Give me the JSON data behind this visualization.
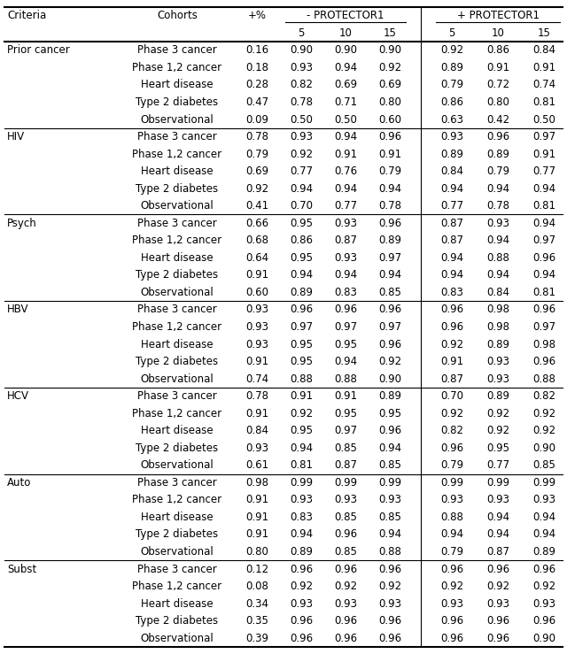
{
  "sections": [
    {
      "criteria": "Prior cancer",
      "rows": [
        [
          "Phase 3 cancer",
          "0.16",
          "0.90",
          "0.90",
          "0.90",
          "0.92",
          "0.86",
          "0.84"
        ],
        [
          "Phase 1,2 cancer",
          "0.18",
          "0.93",
          "0.94",
          "0.92",
          "0.89",
          "0.91",
          "0.91"
        ],
        [
          "Heart disease",
          "0.28",
          "0.82",
          "0.69",
          "0.69",
          "0.79",
          "0.72",
          "0.74"
        ],
        [
          "Type 2 diabetes",
          "0.47",
          "0.78",
          "0.71",
          "0.80",
          "0.86",
          "0.80",
          "0.81"
        ],
        [
          "Observational",
          "0.09",
          "0.50",
          "0.50",
          "0.60",
          "0.63",
          "0.42",
          "0.50"
        ]
      ]
    },
    {
      "criteria": "HIV",
      "rows": [
        [
          "Phase 3 cancer",
          "0.78",
          "0.93",
          "0.94",
          "0.96",
          "0.93",
          "0.96",
          "0.97"
        ],
        [
          "Phase 1,2 cancer",
          "0.79",
          "0.92",
          "0.91",
          "0.91",
          "0.89",
          "0.89",
          "0.91"
        ],
        [
          "Heart disease",
          "0.69",
          "0.77",
          "0.76",
          "0.79",
          "0.84",
          "0.79",
          "0.77"
        ],
        [
          "Type 2 diabetes",
          "0.92",
          "0.94",
          "0.94",
          "0.94",
          "0.94",
          "0.94",
          "0.94"
        ],
        [
          "Observational",
          "0.41",
          "0.70",
          "0.77",
          "0.78",
          "0.77",
          "0.78",
          "0.81"
        ]
      ]
    },
    {
      "criteria": "Psych",
      "rows": [
        [
          "Phase 3 cancer",
          "0.66",
          "0.95",
          "0.93",
          "0.96",
          "0.87",
          "0.93",
          "0.94"
        ],
        [
          "Phase 1,2 cancer",
          "0.68",
          "0.86",
          "0.87",
          "0.89",
          "0.87",
          "0.94",
          "0.97"
        ],
        [
          "Heart disease",
          "0.64",
          "0.95",
          "0.93",
          "0.97",
          "0.94",
          "0.88",
          "0.96"
        ],
        [
          "Type 2 diabetes",
          "0.91",
          "0.94",
          "0.94",
          "0.94",
          "0.94",
          "0.94",
          "0.94"
        ],
        [
          "Observational",
          "0.60",
          "0.89",
          "0.83",
          "0.85",
          "0.83",
          "0.84",
          "0.81"
        ]
      ]
    },
    {
      "criteria": "HBV",
      "rows": [
        [
          "Phase 3 cancer",
          "0.93",
          "0.96",
          "0.96",
          "0.96",
          "0.96",
          "0.98",
          "0.96"
        ],
        [
          "Phase 1,2 cancer",
          "0.93",
          "0.97",
          "0.97",
          "0.97",
          "0.96",
          "0.98",
          "0.97"
        ],
        [
          "Heart disease",
          "0.93",
          "0.95",
          "0.95",
          "0.96",
          "0.92",
          "0.89",
          "0.98"
        ],
        [
          "Type 2 diabetes",
          "0.91",
          "0.95",
          "0.94",
          "0.92",
          "0.91",
          "0.93",
          "0.96"
        ],
        [
          "Observational",
          "0.74",
          "0.88",
          "0.88",
          "0.90",
          "0.87",
          "0.93",
          "0.88"
        ]
      ]
    },
    {
      "criteria": "HCV",
      "rows": [
        [
          "Phase 3 cancer",
          "0.78",
          "0.91",
          "0.91",
          "0.89",
          "0.70",
          "0.89",
          "0.82"
        ],
        [
          "Phase 1,2 cancer",
          "0.91",
          "0.92",
          "0.95",
          "0.95",
          "0.92",
          "0.92",
          "0.92"
        ],
        [
          "Heart disease",
          "0.84",
          "0.95",
          "0.97",
          "0.96",
          "0.82",
          "0.92",
          "0.92"
        ],
        [
          "Type 2 diabetes",
          "0.93",
          "0.94",
          "0.85",
          "0.94",
          "0.96",
          "0.95",
          "0.90"
        ],
        [
          "Observational",
          "0.61",
          "0.81",
          "0.87",
          "0.85",
          "0.79",
          "0.77",
          "0.85"
        ]
      ]
    },
    {
      "criteria": "Auto",
      "rows": [
        [
          "Phase 3 cancer",
          "0.98",
          "0.99",
          "0.99",
          "0.99",
          "0.99",
          "0.99",
          "0.99"
        ],
        [
          "Phase 1,2 cancer",
          "0.91",
          "0.93",
          "0.93",
          "0.93",
          "0.93",
          "0.93",
          "0.93"
        ],
        [
          "Heart disease",
          "0.91",
          "0.83",
          "0.85",
          "0.85",
          "0.88",
          "0.94",
          "0.94"
        ],
        [
          "Type 2 diabetes",
          "0.91",
          "0.94",
          "0.96",
          "0.94",
          "0.94",
          "0.94",
          "0.94"
        ],
        [
          "Observational",
          "0.80",
          "0.89",
          "0.85",
          "0.88",
          "0.79",
          "0.87",
          "0.89"
        ]
      ]
    },
    {
      "criteria": "Subst",
      "rows": [
        [
          "Phase 3 cancer",
          "0.12",
          "0.96",
          "0.96",
          "0.96",
          "0.96",
          "0.96",
          "0.96"
        ],
        [
          "Phase 1,2 cancer",
          "0.08",
          "0.92",
          "0.92",
          "0.92",
          "0.92",
          "0.92",
          "0.92"
        ],
        [
          "Heart disease",
          "0.34",
          "0.93",
          "0.93",
          "0.93",
          "0.93",
          "0.93",
          "0.93"
        ],
        [
          "Type 2 diabetes",
          "0.35",
          "0.96",
          "0.96",
          "0.96",
          "0.96",
          "0.96",
          "0.96"
        ],
        [
          "Observational",
          "0.39",
          "0.96",
          "0.96",
          "0.96",
          "0.96",
          "0.96",
          "0.90"
        ]
      ]
    }
  ],
  "font_size": 8.5,
  "fig_width": 6.4,
  "fig_height": 7.39
}
